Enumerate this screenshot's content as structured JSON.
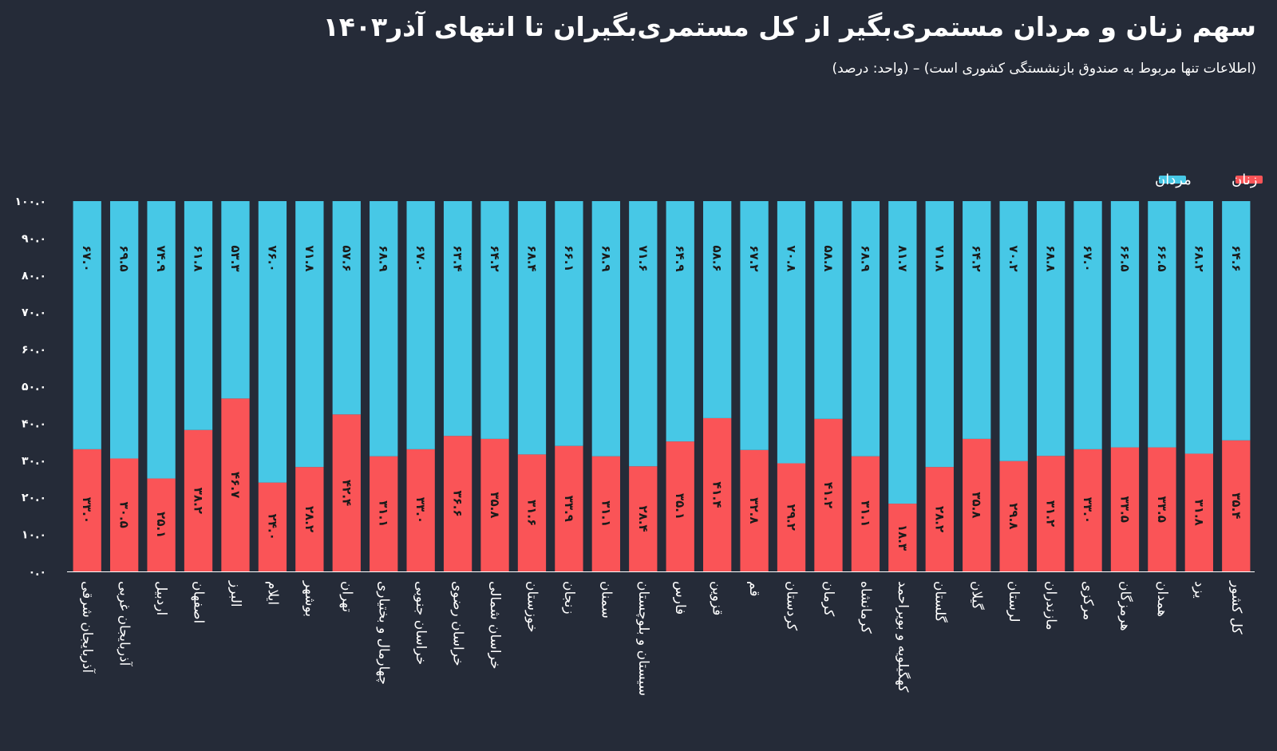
{
  "header": {
    "title": "سهم زنان و مردان مستمری‌بگیر از کل مستمری‌بگیران تا انتهای آذر۱۴۰۳",
    "subtitle": "(اطلاعات تنها مربوط به صندوق بازنشستگی کشوری است) – (واحد: درصد)"
  },
  "colors": {
    "women": "#fa5457",
    "men": "#47c8e6",
    "background": "#252b38"
  },
  "chart_data": {
    "type": "bar",
    "stacked": true,
    "legend_position": "top-right",
    "grid": false,
    "ylim": [
      0,
      100
    ],
    "yticks": [
      0,
      10,
      20,
      30,
      40,
      50,
      60,
      70,
      80,
      90,
      100
    ],
    "ytick_labels": [
      "۰.۰",
      "۱۰.۰",
      "۲۰.۰",
      "۳۰.۰",
      "۴۰.۰",
      "۵۰.۰",
      "۶۰.۰",
      "۷۰.۰",
      "۸۰.۰",
      "۹۰.۰",
      "۱۰۰.۰"
    ],
    "categories": [
      "آذربایجان شرقی",
      "آذربایجان غربی",
      "اردبیل",
      "اصفهان",
      "البرز",
      "ایلام",
      "بوشهر",
      "تهران",
      "چهارمال و بختیاری",
      "خراسان جنوبی",
      "خراسان رضوی",
      "خراسان شمالی",
      "خوزستان",
      "زنجان",
      "سمنان",
      "سیستان و بلوچستان",
      "فارس",
      "قزوین",
      "قم",
      "کردستان",
      "کرمان",
      "کرمانشاه",
      "کهگیلویه و بویراحمد",
      "گلستان",
      "گیلان",
      "لرستان",
      "مازندران",
      "مرکزی",
      "هرمزگان",
      "همدان",
      "یزد",
      "کل کشور"
    ],
    "series": [
      {
        "name": "زنان",
        "values": [
          33.0,
          30.5,
          25.1,
          38.2,
          46.7,
          24.0,
          28.2,
          42.4,
          31.1,
          33.0,
          36.6,
          35.8,
          31.6,
          33.9,
          31.1,
          28.4,
          35.1,
          41.4,
          32.8,
          29.2,
          41.2,
          31.1,
          18.3,
          28.2,
          35.8,
          29.8,
          31.2,
          33.0,
          33.5,
          33.5,
          31.8,
          35.4
        ],
        "labels": [
          "۳۳.۰",
          "۳۰.۵",
          "۲۵.۱",
          "۳۸.۲",
          "۴۶.۷",
          "۲۴.۰",
          "۲۸.۲",
          "۴۲.۴",
          "۳۱.۱",
          "۳۳.۰",
          "۳۶.۶",
          "۳۵.۸",
          "۳۱.۶",
          "۳۳.۹",
          "۳۱.۱",
          "۲۸.۴",
          "۳۵.۱",
          "۴۱.۴",
          "۳۲.۸",
          "۲۹.۲",
          "۴۱.۲",
          "۳۱.۱",
          "۱۸.۳",
          "۲۸.۲",
          "۳۵.۸",
          "۲۹.۸",
          "۳۱.۲",
          "۳۳.۰",
          "۳۳.۵",
          "۳۳.۵",
          "۳۱.۸",
          "۳۵.۴"
        ]
      },
      {
        "name": "مردان",
        "values": [
          67.0,
          69.5,
          74.9,
          61.8,
          53.3,
          76.0,
          71.8,
          57.6,
          68.9,
          67.0,
          63.4,
          64.2,
          68.4,
          66.1,
          68.9,
          71.6,
          64.9,
          58.6,
          67.2,
          70.8,
          58.8,
          68.9,
          81.7,
          71.8,
          64.2,
          70.2,
          68.8,
          67.0,
          66.5,
          66.5,
          68.2,
          64.6
        ],
        "labels": [
          "۶۷.۰",
          "۶۹.۵",
          "۷۴.۹",
          "۶۱.۸",
          "۵۳.۳",
          "۷۶.۰",
          "۷۱.۸",
          "۵۷.۶",
          "۶۸.۹",
          "۶۷.۰",
          "۶۳.۴",
          "۶۴.۲",
          "۶۸.۴",
          "۶۶.۱",
          "۶۸.۹",
          "۷۱.۶",
          "۶۴.۹",
          "۵۸.۶",
          "۶۷.۲",
          "۷۰.۸",
          "۵۸.۸",
          "۶۸.۹",
          "۸۱.۷",
          "۷۱.۸",
          "۶۴.۲",
          "۷۰.۲",
          "۶۸.۸",
          "۶۷.۰",
          "۶۶.۵",
          "۶۶.۵",
          "۶۸.۲",
          "۶۴.۶"
        ]
      }
    ]
  }
}
